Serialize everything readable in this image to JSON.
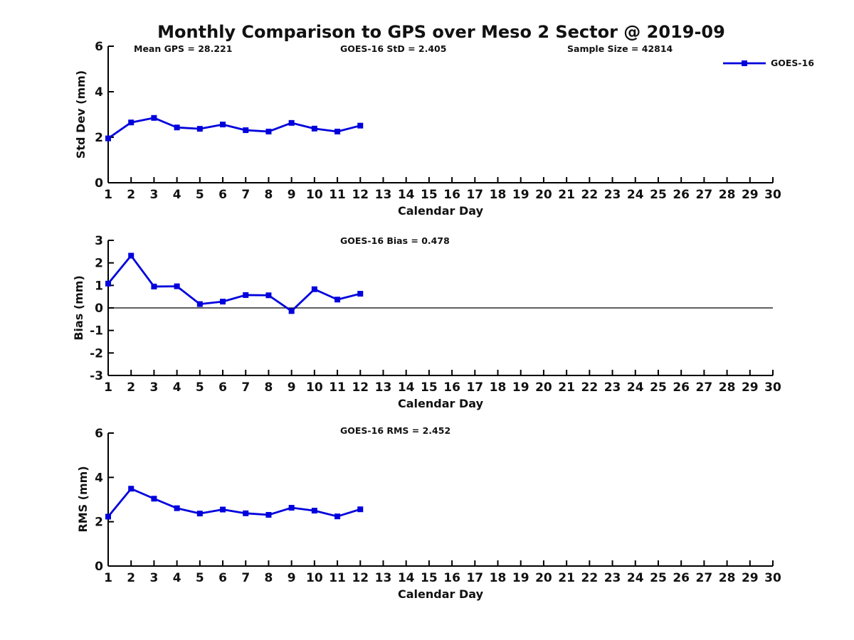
{
  "title": "Monthly Comparison to GPS over Meso 2 Sector @ 2019-09",
  "legend": {
    "label": "GOES-16",
    "marker": "square-icon"
  },
  "colors": {
    "line": "#0000dd",
    "axis": "#000000",
    "text": "#111111",
    "background": "#ffffff"
  },
  "chart_data": [
    {
      "type": "line",
      "ylabel": "Std Dev (mm)",
      "xlabel": "Calendar Day",
      "ylim": [
        0,
        6
      ],
      "yticks": [
        0,
        2,
        4,
        6
      ],
      "xlim": [
        1,
        30
      ],
      "xticks": [
        1,
        2,
        3,
        4,
        5,
        6,
        7,
        8,
        9,
        10,
        11,
        12,
        13,
        14,
        15,
        16,
        17,
        18,
        19,
        20,
        21,
        22,
        23,
        24,
        25,
        26,
        27,
        28,
        29,
        30
      ],
      "zero_line": false,
      "annotations": [
        "Mean GPS = 28.221",
        "GOES-16 StD = 2.405",
        "Sample Size = 42814"
      ],
      "series": [
        {
          "name": "GOES-16",
          "x": [
            1,
            2,
            3,
            4,
            5,
            6,
            7,
            8,
            9,
            10,
            11,
            12
          ],
          "y": [
            1.95,
            2.65,
            2.85,
            2.43,
            2.37,
            2.56,
            2.31,
            2.25,
            2.63,
            2.38,
            2.25,
            2.51
          ]
        }
      ]
    },
    {
      "type": "line",
      "ylabel": "Bias (mm)",
      "xlabel": "Calendar Day",
      "ylim": [
        -3,
        3
      ],
      "yticks": [
        -3,
        -2,
        -1,
        0,
        1,
        2,
        3
      ],
      "xlim": [
        1,
        30
      ],
      "xticks": [
        1,
        2,
        3,
        4,
        5,
        6,
        7,
        8,
        9,
        10,
        11,
        12,
        13,
        14,
        15,
        16,
        17,
        18,
        19,
        20,
        21,
        22,
        23,
        24,
        25,
        26,
        27,
        28,
        29,
        30
      ],
      "zero_line": true,
      "annotations": [
        "GOES-16 Bias = 0.478"
      ],
      "series": [
        {
          "name": "GOES-16",
          "x": [
            1,
            2,
            3,
            4,
            5,
            6,
            7,
            8,
            9,
            10,
            11,
            12
          ],
          "y": [
            1.08,
            2.32,
            0.95,
            0.96,
            0.17,
            0.28,
            0.57,
            0.56,
            -0.14,
            0.83,
            0.37,
            0.63
          ]
        }
      ]
    },
    {
      "type": "line",
      "ylabel": "RMS (mm)",
      "xlabel": "Calendar Day",
      "ylim": [
        0,
        6
      ],
      "yticks": [
        0,
        2,
        4,
        6
      ],
      "xlim": [
        1,
        30
      ],
      "xticks": [
        1,
        2,
        3,
        4,
        5,
        6,
        7,
        8,
        9,
        10,
        11,
        12,
        13,
        14,
        15,
        16,
        17,
        18,
        19,
        20,
        21,
        22,
        23,
        24,
        25,
        26,
        27,
        28,
        29,
        30
      ],
      "zero_line": false,
      "annotations": [
        "GOES-16 RMS = 2.452"
      ],
      "series": [
        {
          "name": "GOES-16",
          "x": [
            1,
            2,
            3,
            4,
            5,
            6,
            7,
            8,
            9,
            10,
            11,
            12
          ],
          "y": [
            2.23,
            3.49,
            3.04,
            2.61,
            2.37,
            2.55,
            2.38,
            2.31,
            2.63,
            2.5,
            2.24,
            2.56
          ]
        }
      ]
    }
  ]
}
